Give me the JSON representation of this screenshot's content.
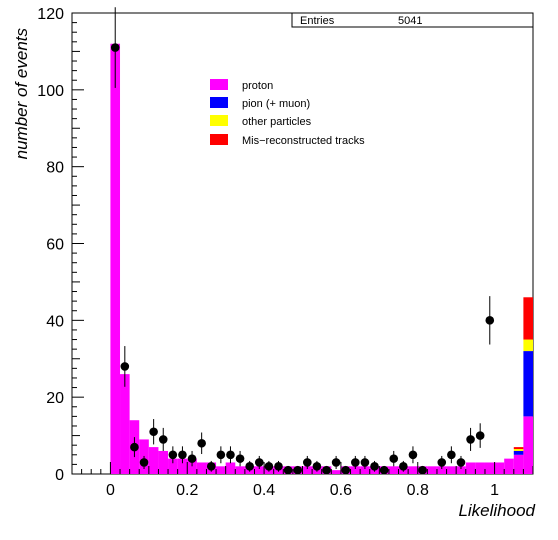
{
  "chart_data": {
    "type": "bar",
    "xlabel": "Likelihood",
    "ylabel": "number of events",
    "xlim": [
      -0.1,
      1.1
    ],
    "ylim": [
      0,
      120
    ],
    "x_ticks": [
      "0",
      "0.2",
      "0.4",
      "0.6",
      "0.8",
      "1"
    ],
    "x_tick_values": [
      0,
      0.2,
      0.4,
      0.6,
      0.8,
      1
    ],
    "y_ticks": [
      "0",
      "20",
      "40",
      "60",
      "80",
      "100",
      "120"
    ],
    "y_tick_values": [
      0,
      20,
      40,
      60,
      80,
      100,
      120
    ],
    "bin_width": 0.025,
    "bin_start": 0,
    "stats": {
      "label": "Entries",
      "value": "5041"
    },
    "legend": [
      {
        "name": "proton",
        "color": "#ff00ff"
      },
      {
        "name": "pion (+ muon)",
        "color": "#0000ff"
      },
      {
        "name": "other particles",
        "color": "#ffff00"
      },
      {
        "name": "Mis−reconstructed tracks",
        "color": "#ff0000"
      }
    ],
    "series": [
      {
        "name": "proton",
        "color": "#ff00ff",
        "values": [
          112,
          26,
          14,
          9,
          7,
          6,
          4,
          4,
          4,
          3,
          3,
          2,
          3,
          2,
          2,
          2,
          2,
          2,
          2,
          2,
          2,
          2,
          2,
          1,
          2,
          2,
          2,
          2,
          2,
          2,
          2,
          2,
          2,
          2,
          2,
          2,
          2,
          3,
          3,
          3,
          3,
          4,
          5,
          15,
          0
        ]
      },
      {
        "name": "pion (+ muon)",
        "color": "#0000ff",
        "values": [
          0,
          0,
          0,
          0,
          0,
          0,
          0,
          0,
          0,
          0,
          0,
          0,
          0,
          0,
          0,
          0,
          0,
          0,
          0,
          0,
          0,
          0,
          0,
          0,
          0,
          0,
          0,
          0,
          0,
          0,
          0,
          0,
          0,
          0,
          0,
          0,
          0,
          0,
          0,
          0,
          0,
          0,
          1,
          17,
          0
        ]
      },
      {
        "name": "other particles",
        "color": "#ffff00",
        "values": [
          0,
          0,
          0,
          0,
          0,
          0,
          0,
          0,
          0,
          0,
          0,
          0,
          0,
          0,
          0,
          0,
          0,
          0,
          0,
          0,
          0,
          0,
          0,
          0,
          0,
          0,
          0,
          0,
          0,
          0,
          0,
          0,
          0,
          0,
          0,
          0,
          0,
          0,
          0,
          0,
          0,
          0,
          0.5,
          3,
          0
        ]
      },
      {
        "name": "Mis−reconstructed tracks",
        "color": "#ff0000",
        "values": [
          0,
          0,
          0,
          0,
          0,
          0,
          0,
          0,
          0,
          0,
          0,
          0,
          0,
          0,
          0,
          0,
          0,
          0,
          0,
          0,
          0,
          0,
          0,
          0,
          0,
          0,
          0,
          0,
          0,
          0,
          0,
          0,
          0,
          0,
          0,
          0,
          0,
          0,
          0,
          0,
          0,
          0,
          0.5,
          11,
          0
        ]
      }
    ],
    "data_points": {
      "x": [
        0.0125,
        0.0375,
        0.0625,
        0.0875,
        0.1125,
        0.1375,
        0.1625,
        0.1875,
        0.2125,
        0.2375,
        0.2625,
        0.2875,
        0.3125,
        0.3375,
        0.3625,
        0.3875,
        0.4125,
        0.4375,
        0.4625,
        0.4875,
        0.5125,
        0.5375,
        0.5625,
        0.5875,
        0.6125,
        0.6375,
        0.6625,
        0.6875,
        0.7125,
        0.7375,
        0.7625,
        0.7875,
        0.8125,
        0.8375,
        0.8625,
        0.8875,
        0.9125,
        0.9375,
        0.9625,
        0.9875
      ],
      "y": [
        111,
        28,
        7,
        3,
        11,
        9,
        5,
        5,
        4,
        8,
        2,
        5,
        5,
        4,
        2,
        3,
        2,
        2,
        1,
        1,
        3,
        2,
        1,
        3,
        1,
        3,
        3,
        2,
        1,
        4,
        2,
        5,
        1,
        0,
        3,
        5,
        3,
        9,
        10,
        40
      ],
      "yerr": [
        10.5,
        5.3,
        2.6,
        1.7,
        3.3,
        3.0,
        2.2,
        2.2,
        2.0,
        2.8,
        1.4,
        2.2,
        2.2,
        2.0,
        1.4,
        1.7,
        1.4,
        1.4,
        1.0,
        1.0,
        1.7,
        1.4,
        1.0,
        1.7,
        1.0,
        1.7,
        1.7,
        1.4,
        1.0,
        2.0,
        1.4,
        2.2,
        1.0,
        0,
        1.7,
        2.2,
        1.7,
        3.0,
        3.2,
        6.3
      ]
    }
  }
}
